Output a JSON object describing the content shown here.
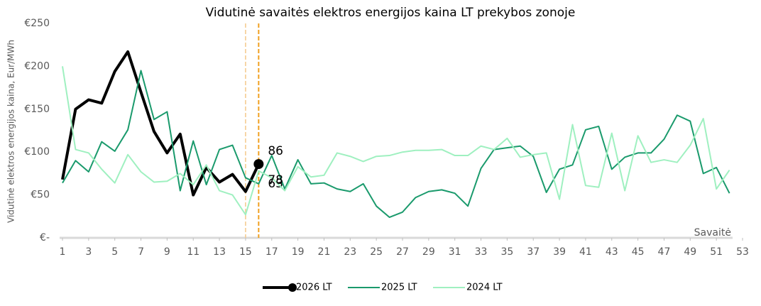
{
  "chart_data": {
    "type": "line",
    "title": "Vidutinė savaitės elektros energijos kaina LT prekybos zonoje",
    "ylabel": "Vidutinė elektros energijos kaina, Eur/MWh",
    "xlabel": "Savaitė",
    "x": [
      1,
      2,
      3,
      4,
      5,
      6,
      7,
      8,
      9,
      10,
      11,
      12,
      13,
      14,
      15,
      16,
      17,
      18,
      19,
      20,
      21,
      22,
      23,
      24,
      25,
      26,
      27,
      28,
      29,
      30,
      31,
      32,
      33,
      34,
      35,
      36,
      37,
      38,
      39,
      40,
      41,
      42,
      43,
      44,
      45,
      46,
      47,
      48,
      49,
      50,
      51,
      52
    ],
    "xlim": [
      1,
      53
    ],
    "xticks": [
      1,
      3,
      5,
      7,
      9,
      11,
      13,
      15,
      17,
      19,
      21,
      23,
      25,
      27,
      29,
      31,
      33,
      35,
      37,
      39,
      41,
      43,
      45,
      47,
      49,
      51,
      53
    ],
    "ylim": [
      0,
      250
    ],
    "yticks": [
      {
        "value": 0,
        "label": "€-"
      },
      {
        "value": 50,
        "label": "€50"
      },
      {
        "value": 100,
        "label": "€100"
      },
      {
        "value": 150,
        "label": "€150"
      },
      {
        "value": 200,
        "label": "€200"
      },
      {
        "value": 250,
        "label": "€250"
      }
    ],
    "grid": false,
    "legend": "bottom",
    "vlines": [
      {
        "x": 15,
        "color": "#f5c98a"
      },
      {
        "x": 16,
        "color": "#f0a020"
      }
    ],
    "series": [
      {
        "name": "2026 LT",
        "color": "#000000",
        "width": 4,
        "marker": "last",
        "label_last": true,
        "values": [
          68,
          150,
          161,
          157,
          194,
          217,
          170,
          124,
          99,
          121,
          50,
          82,
          65,
          74,
          54,
          86,
          null,
          null,
          null,
          null,
          null,
          null,
          null,
          null,
          null,
          null,
          null,
          null,
          null,
          null,
          null,
          null,
          null,
          null,
          null,
          null,
          null,
          null,
          null,
          null,
          null,
          null,
          null,
          null,
          null,
          null,
          null,
          null,
          null,
          null,
          null,
          null
        ]
      },
      {
        "name": "2025 LT",
        "color": "#1a9a6c",
        "width": 2,
        "label_at": 16,
        "values": [
          64,
          90,
          77,
          112,
          101,
          126,
          195,
          138,
          147,
          55,
          113,
          62,
          103,
          108,
          70,
          63,
          96,
          57,
          91,
          63,
          64,
          57,
          54,
          63,
          37,
          24,
          30,
          47,
          54,
          56,
          52,
          37,
          81,
          103,
          105,
          107,
          95,
          53,
          80,
          85,
          126,
          130,
          80,
          94,
          99,
          99,
          115,
          143,
          136,
          75,
          82,
          52
        ]
      },
      {
        "name": "2024 LT",
        "color": "#9ff0c0",
        "width": 2,
        "label_at": 16,
        "values": [
          200,
          103,
          99,
          80,
          64,
          97,
          77,
          65,
          66,
          75,
          62,
          85,
          55,
          50,
          27,
          78,
          70,
          55,
          83,
          71,
          73,
          99,
          95,
          89,
          95,
          96,
          100,
          102,
          102,
          103,
          96,
          96,
          107,
          103,
          116,
          94,
          97,
          99,
          45,
          132,
          61,
          59,
          122,
          55,
          119,
          88,
          91,
          88,
          108,
          139,
          57,
          79
        ]
      }
    ]
  }
}
